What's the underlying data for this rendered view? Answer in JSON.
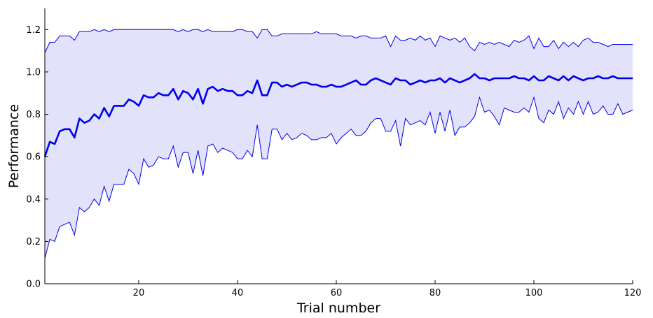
{
  "chart_data": {
    "type": "line",
    "title": "",
    "xlabel": "Trial number",
    "ylabel": "Performance",
    "xlim": [
      1,
      120
    ],
    "ylim": [
      0.0,
      1.3
    ],
    "xticks": [
      20,
      40,
      60,
      80,
      100,
      120
    ],
    "yticks": [
      0.0,
      0.2,
      0.4,
      0.6,
      0.8,
      1.0,
      1.2
    ],
    "ytick_labels": [
      "0.0",
      "0.2",
      "0.4",
      "0.6",
      "0.8",
      "1.0",
      "1.2"
    ],
    "grid": false,
    "colors": {
      "line": "#0000ee",
      "band": "#e2e2fb"
    },
    "x": [
      1,
      2,
      3,
      4,
      5,
      6,
      7,
      8,
      9,
      10,
      11,
      12,
      13,
      14,
      15,
      16,
      17,
      18,
      19,
      20,
      21,
      22,
      23,
      24,
      25,
      26,
      27,
      28,
      29,
      30,
      31,
      32,
      33,
      34,
      35,
      36,
      37,
      38,
      39,
      40,
      41,
      42,
      43,
      44,
      45,
      46,
      47,
      48,
      49,
      50,
      51,
      52,
      53,
      54,
      55,
      56,
      57,
      58,
      59,
      60,
      61,
      62,
      63,
      64,
      65,
      66,
      67,
      68,
      69,
      70,
      71,
      72,
      73,
      74,
      75,
      76,
      77,
      78,
      79,
      80,
      81,
      82,
      83,
      84,
      85,
      86,
      87,
      88,
      89,
      90,
      91,
      92,
      93,
      94,
      95,
      96,
      97,
      98,
      99,
      100,
      101,
      102,
      103,
      104,
      105,
      106,
      107,
      108,
      109,
      110,
      111,
      112,
      113,
      114,
      115,
      116,
      117,
      118,
      119,
      120
    ],
    "series": [
      {
        "role": "mean",
        "values": [
          0.6,
          0.67,
          0.66,
          0.72,
          0.73,
          0.73,
          0.69,
          0.78,
          0.76,
          0.77,
          0.8,
          0.78,
          0.83,
          0.79,
          0.84,
          0.84,
          0.84,
          0.87,
          0.86,
          0.84,
          0.89,
          0.88,
          0.88,
          0.9,
          0.89,
          0.89,
          0.92,
          0.87,
          0.91,
          0.9,
          0.87,
          0.92,
          0.85,
          0.92,
          0.93,
          0.91,
          0.92,
          0.91,
          0.91,
          0.89,
          0.89,
          0.91,
          0.9,
          0.96,
          0.89,
          0.89,
          0.95,
          0.95,
          0.93,
          0.94,
          0.93,
          0.94,
          0.95,
          0.95,
          0.94,
          0.94,
          0.93,
          0.93,
          0.94,
          0.93,
          0.93,
          0.94,
          0.95,
          0.96,
          0.94,
          0.94,
          0.96,
          0.97,
          0.96,
          0.95,
          0.94,
          0.97,
          0.96,
          0.96,
          0.94,
          0.95,
          0.96,
          0.95,
          0.96,
          0.96,
          0.97,
          0.95,
          0.97,
          0.96,
          0.95,
          0.96,
          0.97,
          0.99,
          0.97,
          0.97,
          0.96,
          0.97,
          0.97,
          0.97,
          0.97,
          0.98,
          0.97,
          0.97,
          0.96,
          0.98,
          0.96,
          0.96,
          0.98,
          0.97,
          0.96,
          0.98,
          0.96,
          0.98,
          0.97,
          0.96,
          0.97,
          0.97,
          0.98,
          0.97,
          0.97,
          0.98,
          0.97,
          0.97,
          0.97,
          0.97
        ]
      },
      {
        "role": "upper",
        "values": [
          1.09,
          1.14,
          1.14,
          1.17,
          1.17,
          1.17,
          1.15,
          1.19,
          1.19,
          1.19,
          1.2,
          1.19,
          1.2,
          1.19,
          1.2,
          1.2,
          1.2,
          1.2,
          1.2,
          1.2,
          1.2,
          1.2,
          1.2,
          1.2,
          1.2,
          1.2,
          1.2,
          1.19,
          1.2,
          1.19,
          1.2,
          1.2,
          1.19,
          1.2,
          1.19,
          1.19,
          1.19,
          1.19,
          1.19,
          1.2,
          1.2,
          1.19,
          1.19,
          1.16,
          1.2,
          1.2,
          1.17,
          1.17,
          1.18,
          1.18,
          1.18,
          1.18,
          1.18,
          1.18,
          1.18,
          1.19,
          1.18,
          1.18,
          1.18,
          1.18,
          1.17,
          1.17,
          1.17,
          1.16,
          1.17,
          1.17,
          1.16,
          1.16,
          1.16,
          1.17,
          1.12,
          1.17,
          1.15,
          1.15,
          1.16,
          1.15,
          1.17,
          1.15,
          1.16,
          1.12,
          1.17,
          1.16,
          1.15,
          1.16,
          1.14,
          1.16,
          1.12,
          1.1,
          1.14,
          1.13,
          1.14,
          1.13,
          1.14,
          1.13,
          1.12,
          1.15,
          1.14,
          1.15,
          1.17,
          1.11,
          1.16,
          1.12,
          1.12,
          1.15,
          1.11,
          1.14,
          1.12,
          1.14,
          1.12,
          1.15,
          1.16,
          1.14,
          1.14,
          1.13,
          1.12,
          1.13,
          1.13,
          1.13,
          1.13,
          1.13
        ]
      },
      {
        "role": "lower",
        "values": [
          0.12,
          0.21,
          0.2,
          0.27,
          0.28,
          0.29,
          0.23,
          0.36,
          0.34,
          0.36,
          0.4,
          0.37,
          0.46,
          0.39,
          0.47,
          0.47,
          0.47,
          0.54,
          0.52,
          0.47,
          0.59,
          0.55,
          0.56,
          0.6,
          0.59,
          0.59,
          0.65,
          0.55,
          0.62,
          0.62,
          0.52,
          0.63,
          0.51,
          0.65,
          0.66,
          0.62,
          0.64,
          0.63,
          0.62,
          0.59,
          0.59,
          0.63,
          0.6,
          0.75,
          0.59,
          0.59,
          0.73,
          0.73,
          0.68,
          0.71,
          0.68,
          0.69,
          0.71,
          0.7,
          0.68,
          0.68,
          0.69,
          0.69,
          0.71,
          0.66,
          0.69,
          0.71,
          0.73,
          0.7,
          0.7,
          0.72,
          0.76,
          0.78,
          0.78,
          0.72,
          0.72,
          0.77,
          0.65,
          0.78,
          0.75,
          0.76,
          0.77,
          0.75,
          0.81,
          0.71,
          0.81,
          0.72,
          0.82,
          0.7,
          0.74,
          0.74,
          0.76,
          0.79,
          0.88,
          0.81,
          0.82,
          0.79,
          0.75,
          0.83,
          0.82,
          0.81,
          0.81,
          0.83,
          0.81,
          0.88,
          0.78,
          0.76,
          0.82,
          0.8,
          0.86,
          0.78,
          0.83,
          0.8,
          0.86,
          0.8,
          0.86,
          0.8,
          0.81,
          0.84,
          0.8,
          0.8,
          0.85,
          0.8,
          0.81,
          0.82
        ]
      }
    ]
  }
}
